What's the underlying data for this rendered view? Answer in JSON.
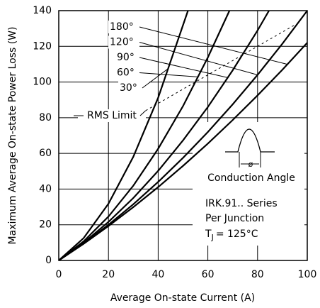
{
  "chart_data": {
    "type": "line",
    "x_label": "Average On-state Current (A)",
    "y_label": "Maximum Average On-state Power Loss (W)",
    "xlim": [
      0,
      100
    ],
    "xticks": [
      0,
      20,
      40,
      60,
      80,
      100
    ],
    "ylim": [
      0,
      140
    ],
    "yticks": [
      0,
      20,
      40,
      60,
      80,
      100,
      120,
      140
    ],
    "grid": true,
    "series": [
      {
        "name": "180°",
        "color": "#000000",
        "x": [
          0,
          10,
          20,
          30,
          40,
          50,
          60,
          70,
          80,
          90,
          100
        ],
        "values": [
          0,
          9.3,
          19.3,
          29.9,
          41.1,
          53.0,
          65.5,
          78.7,
          92.5,
          106.9,
          122
        ]
      },
      {
        "name": "120°",
        "color": "#000000",
        "x": [
          0,
          10,
          20,
          30,
          40,
          50,
          60,
          70,
          80,
          90,
          100
        ],
        "values": [
          0,
          9.5,
          20,
          31.5,
          44,
          57.5,
          72,
          87.5,
          104,
          121.5,
          140
        ]
      },
      {
        "name": "90°",
        "color": "#000000",
        "x": [
          0,
          10,
          20,
          30,
          40,
          50,
          60,
          70,
          80,
          84.6
        ],
        "values": [
          0,
          9.9,
          21.6,
          35.0,
          50.2,
          67.3,
          86.0,
          106.6,
          128.9,
          140
        ]
      },
      {
        "name": "60°",
        "color": "#000000",
        "x": [
          0,
          10,
          20,
          30,
          40,
          50,
          60,
          68.7
        ],
        "values": [
          0,
          10.7,
          24.6,
          41.9,
          62.6,
          86.5,
          113.8,
          140
        ]
      },
      {
        "name": "30°",
        "color": "#000000",
        "x": [
          0,
          10,
          20,
          30,
          40,
          52
        ],
        "values": [
          0,
          12.5,
          31.8,
          58.1,
          91.2,
          140
        ]
      }
    ],
    "rms_limit": {
      "label": "RMS Limit",
      "x": [
        35,
        95
      ],
      "values": [
        84,
        132
      ]
    },
    "inset": {
      "caption": "Conduction Angle",
      "symbol": "ø"
    },
    "notes": [
      "IRK.91.. Series",
      "Per Junction"
    ],
    "junction_temp": {
      "symbol": "T",
      "subscript": "J",
      "text": "= 125°C"
    }
  }
}
